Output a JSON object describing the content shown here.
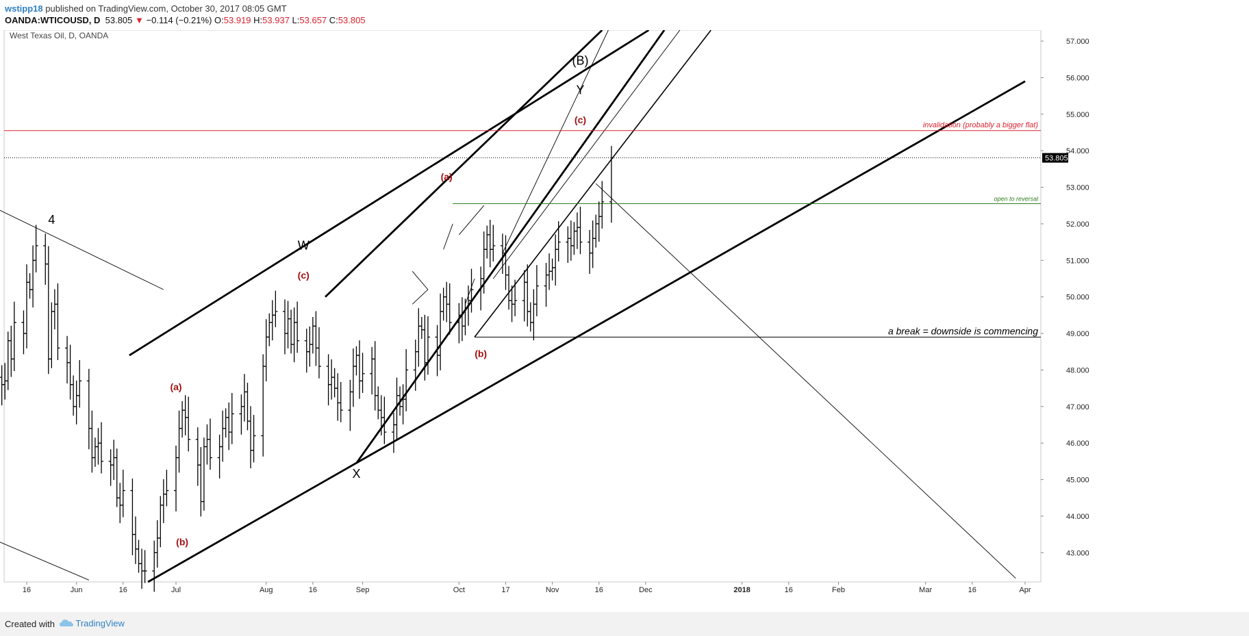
{
  "header": {
    "username": "wstipp18",
    "published_text": "published on TradingView.com, October 30, 2017 08:05 GMT",
    "symbol": "OANDA:WTICOUSD, D",
    "last": "53.805",
    "change_arrow": "▼",
    "change": "−0.114 (−0.21%)",
    "o_label": "O:",
    "o": "53.919",
    "h_label": "H:",
    "h": "53.937",
    "l_label": "L:",
    "l": "53.657",
    "c_label": "C:",
    "c": "53.805"
  },
  "footer": {
    "created_with": "Created with",
    "brand": "TradingView"
  },
  "chart_data": {
    "type": "ohlc",
    "title": "West Texas Oil, D, OANDA",
    "ylim": [
      42.2,
      57.3
    ],
    "y_ticks": [
      "57.000",
      "56.000",
      "55.000",
      "54.000",
      "53.000",
      "52.000",
      "51.000",
      "50.000",
      "49.000",
      "48.000",
      "47.000",
      "46.000",
      "45.000",
      "44.000",
      "43.000"
    ],
    "x_ticks": [
      {
        "label": "16",
        "date": "2017-05-16",
        "bold": false
      },
      {
        "label": "Jun",
        "date": "2017-06-01",
        "bold": false
      },
      {
        "label": "16",
        "date": "2017-06-16",
        "bold": false
      },
      {
        "label": "Jul",
        "date": "2017-07-03",
        "bold": false
      },
      {
        "label": "Aug",
        "date": "2017-08-01",
        "bold": false
      },
      {
        "label": "16",
        "date": "2017-08-16",
        "bold": false
      },
      {
        "label": "Sep",
        "date": "2017-09-01",
        "bold": false
      },
      {
        "label": "Oct",
        "date": "2017-10-02",
        "bold": false
      },
      {
        "label": "17",
        "date": "2017-10-17",
        "bold": false
      },
      {
        "label": "Nov",
        "date": "2017-11-01",
        "bold": false
      },
      {
        "label": "16",
        "date": "2017-11-16",
        "bold": false
      },
      {
        "label": "Dec",
        "date": "2017-12-01",
        "bold": false
      },
      {
        "label": "2018",
        "date": "2018-01-01",
        "bold": true
      },
      {
        "label": "16",
        "date": "2018-01-16",
        "bold": false
      },
      {
        "label": "Feb",
        "date": "2018-02-01",
        "bold": false
      },
      {
        "label": "Mar",
        "date": "2018-03-01",
        "bold": false
      },
      {
        "label": "16",
        "date": "2018-03-16",
        "bold": false
      },
      {
        "label": "Apr",
        "date": "2018-04-02",
        "bold": false
      }
    ],
    "last_price": {
      "label": "53.805",
      "value": 53.805
    },
    "series": [
      {
        "closes": [
          45.9,
          47.2,
          47.8,
          47.6,
          47.7,
          48.8,
          48.3,
          49.3,
          49.0,
          50.4,
          50.2,
          51.0,
          51.4,
          50.9,
          48.3,
          49.6,
          49.8,
          48.6,
          48.2,
          47.6,
          47.0,
          47.3,
          47.7,
          46.4,
          45.6,
          45.9,
          46.0,
          45.5,
          45.4,
          45.6,
          44.5,
          44.3,
          44.7,
          43.5,
          43.1,
          42.7,
          42.5,
          42.5,
          43.0,
          43.4,
          44.3,
          44.6,
          44.7,
          45.6,
          46.4,
          46.9,
          46.7,
          46.1,
          45.4,
          44.4,
          45.9,
          46.1,
          45.6,
          45.9,
          46.4,
          46.7,
          46.3,
          46.8,
          47.0,
          47.4,
          46.6,
          45.8,
          46.2,
          48.1,
          48.9,
          49.3,
          49.5,
          49.6,
          49.0,
          49.4,
          48.7,
          49.3,
          48.8,
          48.5,
          48.7,
          49.2,
          48.6,
          48.1,
          47.6,
          47.8,
          47.5,
          47.1,
          46.9,
          47.4,
          48.1,
          48.4,
          47.7,
          47.9,
          48.3,
          47.3,
          46.9,
          46.7,
          46.3,
          46.5,
          47.3,
          47.0,
          47.2,
          48.0,
          48.5,
          49.2,
          49.1,
          48.2,
          48.9,
          48.4,
          49.6,
          50.0,
          49.8,
          49.3,
          49.5,
          49.2,
          49.7,
          49.9,
          50.2,
          50.5,
          51.3,
          51.7,
          51.3,
          51.4,
          51.2,
          50.6,
          49.9,
          49.8,
          49.9,
          50.4,
          49.6,
          49.3,
          49.8,
          50.3,
          50.6,
          50.7,
          50.8,
          51.3,
          51.5,
          51.6,
          51.4,
          51.8,
          51.9,
          51.5,
          51.2,
          51.6,
          52.0,
          52.2,
          52.6,
          53.8
        ]
      }
    ],
    "hlines": [
      {
        "value": 54.55,
        "label": "invalidation (probably a bigger flat)",
        "color": "#d9232e"
      },
      {
        "value": 52.55,
        "label": "open to reversal",
        "color": "#2e7d1e"
      },
      {
        "value": 48.9,
        "label": "a break = downside is commencing",
        "color": "#000000"
      }
    ],
    "annotations": [
      {
        "text": "4",
        "color": "#000000",
        "date": "2017-05-24",
        "price": 52.0
      },
      {
        "text": "W",
        "color": "#000000",
        "date": "2017-08-13",
        "price": 51.3
      },
      {
        "text": "(c)",
        "color": "#a01010",
        "date": "2017-08-13",
        "price": 50.5
      },
      {
        "text": "(a)",
        "color": "#a01010",
        "date": "2017-07-03",
        "price": 47.45
      },
      {
        "text": "(b)",
        "color": "#a01010",
        "date": "2017-07-05",
        "price": 43.2
      },
      {
        "text": "X",
        "color": "#000000",
        "date": "2017-08-30",
        "price": 45.05
      },
      {
        "text": "(a)",
        "color": "#a01010",
        "date": "2017-09-28",
        "price": 53.2
      },
      {
        "text": "(b)",
        "color": "#a01010",
        "date": "2017-10-09",
        "price": 48.35
      },
      {
        "text": "(B)",
        "color": "#000000",
        "date": "2017-11-10",
        "price": 56.35
      },
      {
        "text": "Y",
        "color": "#000000",
        "date": "2017-11-10",
        "price": 55.55
      },
      {
        "text": "(c)",
        "color": "#a01010",
        "date": "2017-11-10",
        "price": 54.75
      }
    ],
    "trendlines": [
      {
        "from": [
          "2017-05-03",
          52.55
        ],
        "to": [
          "2017-06-29",
          50.2
        ],
        "style": "thin"
      },
      {
        "from": [
          "2017-05-03",
          43.45
        ],
        "to": [
          "2017-06-05",
          42.25
        ],
        "style": "thin"
      },
      {
        "from": [
          "2017-06-18",
          48.4
        ],
        "to": [
          "2017-12-02",
          57.3
        ],
        "style": "thick"
      },
      {
        "from": [
          "2017-06-24",
          42.2
        ],
        "to": [
          "2018-04-02",
          55.9
        ],
        "style": "thick"
      },
      {
        "from": [
          "2017-08-30",
          45.45
        ],
        "to": [
          "2017-12-07",
          57.3
        ],
        "style": "thick"
      },
      {
        "from": [
          "2017-08-20",
          50.0
        ],
        "to": [
          "2017-11-17",
          57.3
        ],
        "style": "thick"
      },
      {
        "from": [
          "2017-10-07",
          48.9
        ],
        "to": [
          "2017-12-22",
          57.3
        ],
        "style": "medium"
      },
      {
        "from": [
          "2017-10-16",
          51.2
        ],
        "to": [
          "2017-11-19",
          57.3
        ],
        "style": "thin"
      },
      {
        "from": [
          "2017-10-13",
          50.5
        ],
        "to": [
          "2017-12-12",
          57.3
        ],
        "style": "thin"
      },
      {
        "from": [
          "2017-10-02",
          51.7
        ],
        "to": [
          "2017-10-10",
          52.5
        ],
        "style": "thin"
      },
      {
        "from": [
          "2017-11-15",
          53.1
        ],
        "to": [
          "2018-03-30",
          42.3
        ],
        "style": "thin"
      },
      {
        "from": [
          "2017-09-17",
          50.7
        ],
        "to": [
          "2017-09-22",
          50.2
        ],
        "style": "thin"
      },
      {
        "from": [
          "2017-09-17",
          49.8
        ],
        "to": [
          "2017-09-22",
          50.2
        ],
        "style": "thin"
      },
      {
        "from": [
          "2017-09-27",
          51.3
        ],
        "to": [
          "2017-09-30",
          52.0
        ],
        "style": "thin"
      },
      {
        "from": [
          "2017-10-04",
          49.8
        ],
        "to": [
          "2017-10-07",
          50.5
        ],
        "style": "thin"
      }
    ]
  }
}
